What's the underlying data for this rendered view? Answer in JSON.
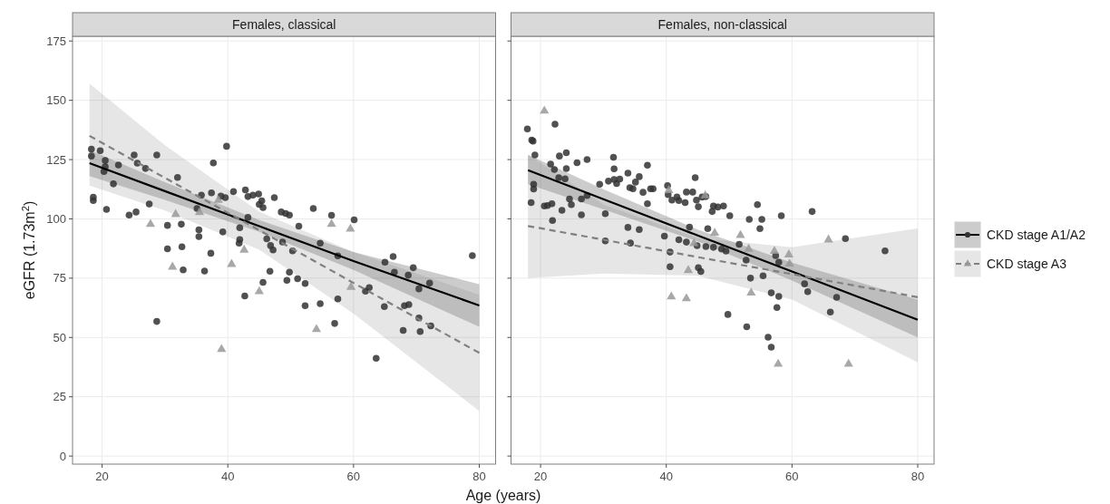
{
  "chart_data": [
    {
      "type": "scatter",
      "title": "Females, classical",
      "xlabel": "Age (years)",
      "ylabel": "eGFR (1.73m$^{2}$)",
      "xlim": [
        15.3,
        82.6
      ],
      "ylim": [
        -3.4,
        177
      ],
      "xticks": [
        20,
        40,
        60,
        80
      ],
      "yticks": [
        0,
        25,
        50,
        75,
        100,
        125,
        150,
        175
      ],
      "grid": true,
      "series": [
        {
          "color": "#333333",
          "marker": "circle",
          "x": [
            18.3,
            18.3,
            19.7,
            20.5,
            20.5,
            20.3,
            22.6,
            25.1,
            25.6,
            26.9,
            28.7,
            39.8,
            37.7,
            18.6,
            18.6,
            21.8,
            20.7,
            24.3,
            25.4,
            27.5,
            32,
            30.4,
            32.6,
            30.4,
            32.7,
            32.9,
            35.4,
            35.4,
            35.1,
            35.8,
            37.3,
            36.3,
            37.4,
            38.9,
            39.6,
            39.2,
            40.9,
            42.8,
            43.2,
            44,
            44.9,
            45.4,
            45,
            45.6,
            47.4,
            48.5,
            49.2,
            49.8,
            43.2,
            41.9,
            41.9,
            41.8,
            46.2,
            46.8,
            47.2,
            48.7,
            46.7,
            45.6,
            49.8,
            49.4,
            42.7,
            28.7,
            53.6,
            56.5,
            60.1,
            51.3,
            50.3,
            54.7,
            57.5,
            51.1,
            52.3,
            52.3,
            54.7,
            57.5,
            57,
            61.9,
            62.5,
            65,
            66.3,
            66.5,
            68.7,
            69.5,
            72.1,
            70.4,
            64.9,
            68.1,
            68.8,
            70.4,
            72.3,
            67.9,
            70.6,
            63.6,
            78.9
          ],
          "values": [
            129.4,
            126.5,
            128.75,
            124.6,
            122,
            120,
            122.75,
            126.9,
            123.5,
            121.25,
            126.9,
            130.6,
            123.6,
            109.1,
            107.75,
            114.75,
            104,
            101.6,
            102.9,
            106.25,
            117.5,
            97.25,
            97.75,
            87.4,
            88.25,
            78.5,
            95.4,
            92.5,
            104.4,
            110,
            85.5,
            78,
            111,
            109.6,
            109,
            94.5,
            111.5,
            112.25,
            109.4,
            110,
            110.5,
            107.6,
            106.1,
            104.75,
            109,
            102.9,
            102.25,
            101.6,
            100.6,
            96.25,
            91.25,
            89.75,
            91.6,
            88.75,
            86.9,
            90.25,
            77.9,
            73.25,
            77.5,
            74.1,
            67.5,
            56.75,
            104.4,
            101.5,
            99.6,
            96.9,
            86.5,
            89.75,
            84.4,
            74.75,
            72.75,
            63.4,
            64.25,
            66.25,
            55.9,
            69.5,
            71,
            81.75,
            84.1,
            77.5,
            76.25,
            79.4,
            72.9,
            70.5,
            63,
            63.4,
            63.9,
            58.25,
            54.9,
            53,
            52.5,
            41.25,
            84.5
          ]
        },
        {
          "color": "#999999",
          "marker": "triangle",
          "x": [
            27.7,
            31.7,
            35.5,
            38.5,
            31.2,
            40.6,
            42.6,
            45,
            39,
            56.5,
            59.5,
            59.6,
            54.1
          ],
          "values": [
            97.75,
            101.9,
            102.75,
            107.9,
            79.75,
            80.9,
            86.9,
            69.4,
            45,
            97.75,
            95.75,
            71.25,
            53.4
          ]
        },
        {
          "type": "line",
          "color": "#000000",
          "line_style": "solid",
          "x": [
            18,
            30,
            45,
            60,
            80
          ],
          "values": [
            123.5,
            111.7,
            96.9,
            82.2,
            63.5
          ],
          "lower": [
            118,
            108,
            94.5,
            78.5,
            54.5
          ],
          "upper": [
            129,
            115.5,
            99.5,
            86,
            72.5
          ]
        },
        {
          "type": "line",
          "color": "#808080",
          "line_style": "dashed",
          "x": [
            18,
            30,
            45,
            60,
            80
          ],
          "values": [
            135,
            117.3,
            95.2,
            73,
            43.5
          ],
          "lower": [
            114,
            103.5,
            87,
            60,
            19
          ],
          "upper": [
            157,
            131,
            103,
            86,
            68
          ]
        }
      ]
    },
    {
      "type": "scatter",
      "title": "Females, non-classical",
      "xlim": [
        15.3,
        82.6
      ],
      "ylim": [
        -3.4,
        177
      ],
      "xticks": [
        20,
        40,
        60,
        80
      ],
      "yticks": [
        0,
        25,
        50,
        75,
        100,
        125,
        150,
        175
      ],
      "grid": true,
      "tick_labels": "x",
      "legend": "right",
      "series": [
        {
          "color": "#333333",
          "marker": "circle",
          "x": [
            17.9,
            18.6,
            18.8,
            22.3,
            19.1,
            21.6,
            22.2,
            23,
            24.1,
            24.1,
            22.9,
            23.9,
            25.8,
            27.4,
            18.9,
            18.9,
            18.5,
            20.6,
            21.1,
            21.8,
            21.9,
            23.4,
            24.6,
            24.9,
            26.5,
            26.5,
            27.4,
            29.4,
            30.3,
            30.8,
            31.6,
            31.7,
            31.7,
            32.1,
            32.6,
            33.9,
            34.2,
            34.7,
            35.1,
            35.7,
            36.3,
            37,
            37.5,
            37.9,
            37,
            33.9,
            35.7,
            30.3,
            34.3,
            39.7,
            40.2,
            40.3,
            40.9,
            41.7,
            42,
            43,
            43.2,
            44.2,
            44.6,
            44.8,
            45.1,
            45.7,
            46.3,
            46.6,
            47.3,
            47.5,
            48.2,
            49.1,
            40.6,
            40.6,
            42,
            43.2,
            43.7,
            44.9,
            45.1,
            45.5,
            46.3,
            47.5,
            48.8,
            50.1,
            54.5,
            53.2,
            55.2,
            58.3,
            54.9,
            63.2,
            49.5,
            51.6,
            52.7,
            53.4,
            55.4,
            57.4,
            57.9,
            56.7,
            57.9,
            57.6,
            62,
            62.5,
            67.1,
            66.1,
            68.5,
            74.8,
            49.8,
            52.8,
            56.2,
            56.7
          ],
          "values": [
            137.9,
            133.2,
            132.8,
            139.9,
            126.9,
            123.1,
            120.8,
            126.5,
            127.9,
            121.2,
            117.4,
            116.9,
            123.7,
            125,
            114.6,
            112.6,
            106.9,
            105.4,
            105.6,
            106.4,
            99.3,
            103.6,
            108.4,
            106,
            108.4,
            101.7,
            109.8,
            114.6,
            102.2,
            115.9,
            126,
            121.1,
            116.6,
            114.9,
            116.8,
            119.3,
            113.2,
            112.7,
            115.5,
            117.8,
            111.2,
            122.6,
            112.7,
            112.7,
            106.4,
            96.4,
            95.5,
            90.7,
            89.8,
            92.7,
            114,
            110.2,
            107.9,
            109.2,
            107.7,
            106.9,
            111.3,
            111.3,
            117.4,
            107.9,
            105.1,
            109.2,
            109.4,
            95.9,
            103.1,
            105.4,
            105,
            105.4,
            86,
            79.8,
            91.2,
            90.2,
            96.5,
            88.7,
            79.4,
            77.8,
            88.3,
            88,
            87.3,
            101.3,
            106,
            99.8,
            99.8,
            101.3,
            95.9,
            103.1,
            86.4,
            89.3,
            82.6,
            75,
            76,
            84.5,
            81.7,
            68.8,
            67.3,
            62.6,
            72.6,
            69.3,
            66.9,
            60.7,
            91.7,
            86.5,
            59.7,
            54.5,
            50.1,
            45.9
          ]
        },
        {
          "color": "#999999",
          "marker": "triangle",
          "x": [
            20.6,
            40.4,
            46.2,
            47.7,
            44.4,
            43.5,
            40.8,
            43.2,
            51.8,
            53.1,
            57.2,
            59.5,
            59.6,
            65.8,
            53.5,
            57.8,
            69
          ],
          "values": [
            145.5,
            112,
            109.8,
            94,
            89.6,
            78.3,
            67.2,
            66.4,
            93.1,
            87.3,
            86.4,
            84.9,
            81,
            91.2,
            68.8,
            38.8,
            38.8
          ]
        },
        {
          "type": "line",
          "name": "CKD stage A1/A2",
          "color": "#000000",
          "line_style": "solid",
          "x": [
            18,
            30,
            45,
            60,
            80
          ],
          "values": [
            120.5,
            108.3,
            93,
            77.8,
            57.5
          ],
          "lower": [
            114.6,
            104,
            90.5,
            74,
            50
          ],
          "upper": [
            127,
            112.5,
            95.5,
            81.5,
            66
          ]
        },
        {
          "type": "line",
          "name": "CKD stage A3",
          "color": "#808080",
          "line_style": "dashed",
          "x": [
            18,
            30,
            45,
            60,
            80
          ],
          "values": [
            97,
            91.2,
            83.9,
            76.7,
            67
          ],
          "lower": [
            75,
            77,
            76,
            66,
            39.5
          ],
          "upper": [
            127,
            106,
            92,
            88,
            96
          ]
        }
      ]
    }
  ]
}
